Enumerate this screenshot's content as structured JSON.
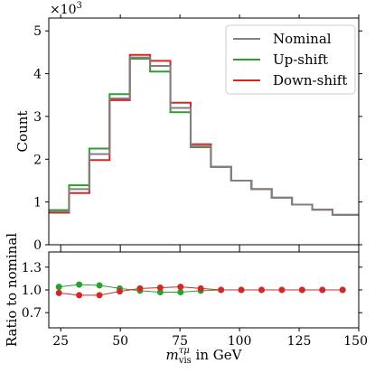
{
  "chart_data": [
    {
      "type": "line",
      "subtype": "step-histogram",
      "title": "",
      "ylabel": "Count",
      "y_multiplier_label": "×10",
      "y_multiplier_exponent": "3",
      "xlim": [
        20,
        150
      ],
      "ylim": [
        0,
        5.3
      ],
      "y_ticks": [
        0,
        1,
        2,
        3,
        4,
        5
      ],
      "bin_edges": [
        20,
        28.5,
        37,
        45.5,
        54,
        62.5,
        71,
        79.5,
        88,
        96.5,
        105,
        113.5,
        122,
        130.5,
        139,
        147.5,
        150
      ],
      "legend_position": "top-right",
      "series": [
        {
          "name": "Nominal",
          "color": "#808080",
          "values": [
            0.78,
            1.3,
            2.12,
            3.42,
            4.38,
            4.18,
            3.2,
            2.3,
            1.82,
            1.5,
            1.3,
            1.1,
            0.94,
            0.82,
            0.7,
            0.7
          ]
        },
        {
          "name": "Up-shift",
          "color": "#2ca02c",
          "values": [
            0.81,
            1.39,
            2.25,
            3.52,
            4.35,
            4.05,
            3.1,
            2.28,
            1.82,
            1.5,
            1.3,
            1.1,
            0.94,
            0.82,
            0.7,
            0.7
          ]
        },
        {
          "name": "Down-shift",
          "color": "#d62728",
          "values": [
            0.75,
            1.21,
            1.98,
            3.38,
            4.44,
            4.3,
            3.32,
            2.35,
            1.82,
            1.5,
            1.3,
            1.1,
            0.94,
            0.82,
            0.7,
            0.7
          ]
        }
      ]
    },
    {
      "type": "line",
      "title": "",
      "ylabel": "Ratio to nominal",
      "xlabel_main": "m",
      "xlabel_sup": "τμ",
      "xlabel_sub": "vis",
      "xlabel_tail": " in GeV",
      "xlim": [
        20,
        150
      ],
      "ylim": [
        0.5,
        1.5
      ],
      "y_ticks": [
        0.7,
        1.0,
        1.3
      ],
      "y_tick_labels": [
        "0.7",
        "1.0",
        "1.3"
      ],
      "x_ticks": [
        25,
        50,
        75,
        100,
        125,
        150
      ],
      "x_tick_labels": [
        "25",
        "50",
        "75",
        "100",
        "125",
        "150"
      ],
      "x": [
        24.25,
        32.75,
        41.25,
        49.75,
        58.25,
        66.75,
        75.25,
        83.75,
        92.25,
        100.75,
        109.25,
        117.75,
        126.25,
        134.75,
        143.25
      ],
      "series": [
        {
          "name": "Up-shift",
          "color": "#2ca02c",
          "values": [
            1.04,
            1.07,
            1.06,
            1.02,
            0.99,
            0.97,
            0.97,
            0.99,
            1.0,
            1.0,
            1.0,
            1.0,
            1.0,
            1.0,
            1.0
          ]
        },
        {
          "name": "Down-shift",
          "color": "#d62728",
          "values": [
            0.96,
            0.93,
            0.93,
            0.98,
            1.02,
            1.03,
            1.04,
            1.02,
            1.0,
            1.0,
            1.0,
            1.0,
            1.0,
            1.0,
            1.0
          ]
        }
      ]
    }
  ]
}
